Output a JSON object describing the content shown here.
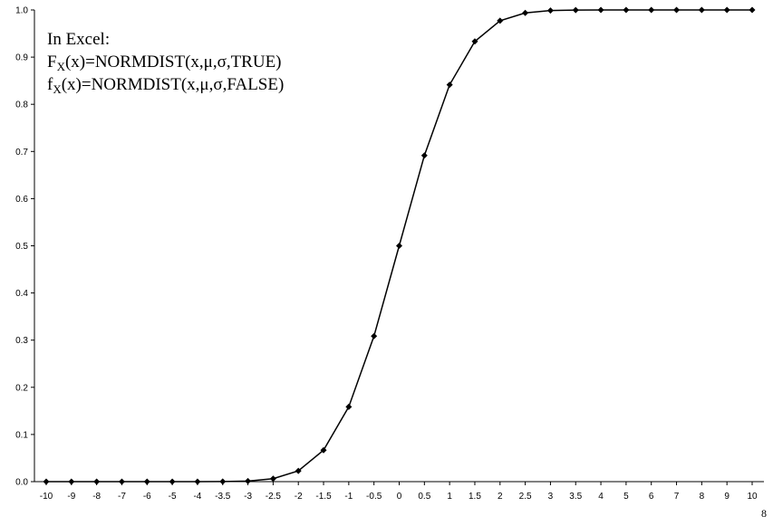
{
  "chart_data": {
    "type": "line",
    "title": "",
    "xlabel": "",
    "ylabel": "",
    "ylim": [
      0,
      1
    ],
    "y_ticks": [
      "0.0",
      "0.1",
      "0.2",
      "0.3",
      "0.4",
      "0.5",
      "0.6",
      "0.7",
      "0.8",
      "0.9",
      "1.0"
    ],
    "categories": [
      "-10",
      "-9",
      "-8",
      "-7",
      "-6",
      "-5",
      "-4",
      "-3.5",
      "-3",
      "-2.5",
      "-2",
      "-1.5",
      "-1",
      "-0.5",
      "0",
      "0.5",
      "1",
      "1.5",
      "2",
      "2.5",
      "3",
      "3.5",
      "4",
      "5",
      "6",
      "7",
      "8",
      "9",
      "10"
    ],
    "values": [
      0,
      0,
      0,
      0,
      0,
      0,
      0,
      0.0002,
      0.0013,
      0.0062,
      0.0228,
      0.0668,
      0.1587,
      0.3085,
      0.5,
      0.6915,
      0.8413,
      0.9332,
      0.9772,
      0.9938,
      0.9987,
      0.9998,
      1,
      1,
      1,
      1,
      1,
      1,
      1
    ],
    "grid": false,
    "marker": "diamond",
    "line_color": "#000000",
    "annotation": {
      "line1": "In Excel:",
      "line2_prefix": "F",
      "line2_sub": "X",
      "line2_rest": "(x)=NORMDIST(x,μ,σ,TRUE)",
      "line3_prefix": "f",
      "line3_sub": "X",
      "line3_rest": "(x)=NORMDIST(x,μ,σ,FALSE)"
    }
  },
  "page_mark": "8"
}
